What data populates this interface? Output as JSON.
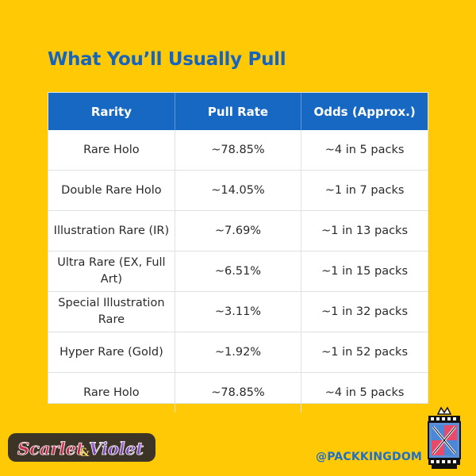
{
  "title": "What You’ll Usually Pull",
  "table": {
    "headers": [
      "Rarity",
      "Pull Rate",
      "Odds (Approx.)"
    ],
    "rows": [
      [
        "Rare Holo",
        "~78.85%",
        "~4 in 5 packs"
      ],
      [
        "Double Rare Holo",
        "~14.05%",
        "~1 in 7 packs"
      ],
      [
        "Illustration Rare (IR)",
        "~7.69%",
        "~1 in 13 packs"
      ],
      [
        "Ultra Rare (EX, Full Art)",
        "~6.51%",
        "~1 in 15 packs"
      ],
      [
        "Special Illustration Rare",
        "~3.11%",
        "~1 in 32 packs"
      ],
      [
        "Hyper Rare (Gold)",
        "~1.92%",
        "~1 in 52 packs"
      ],
      [
        "Rare Holo",
        "~78.85%",
        "~4 in 5 packs"
      ]
    ]
  },
  "footer": {
    "logo_text": "SCARLET & VIOLET",
    "handle": "@PACKKINGDOM"
  },
  "colors": {
    "background": "#FFC905",
    "accent": "#1565C0",
    "header_bg": "#1768C3"
  }
}
